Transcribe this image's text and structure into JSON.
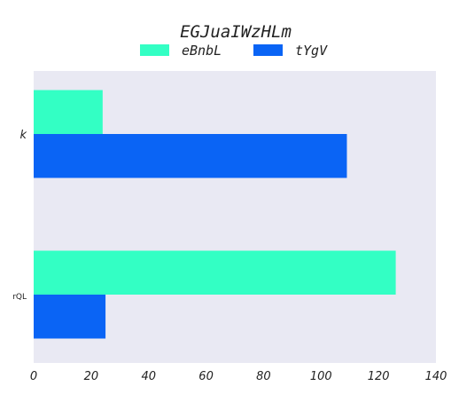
{
  "chart_data": {
    "type": "bar",
    "orientation": "horizontal",
    "title": "EGJuaIWzHLm",
    "xlabel": "",
    "ylabel": "",
    "categories": [
      "k",
      "rQL"
    ],
    "series": [
      {
        "name": "eBnbL",
        "color": "#33ffc4",
        "values": [
          24,
          126
        ]
      },
      {
        "name": "tYgV",
        "color": "#0a64f5",
        "values": [
          109,
          25
        ]
      }
    ],
    "xlim": [
      0,
      140
    ],
    "xticks": [
      0,
      20,
      40,
      60,
      80,
      100,
      120,
      140
    ],
    "grid": false,
    "legend_position": "top-center",
    "background_color": "#e9e9f3"
  }
}
